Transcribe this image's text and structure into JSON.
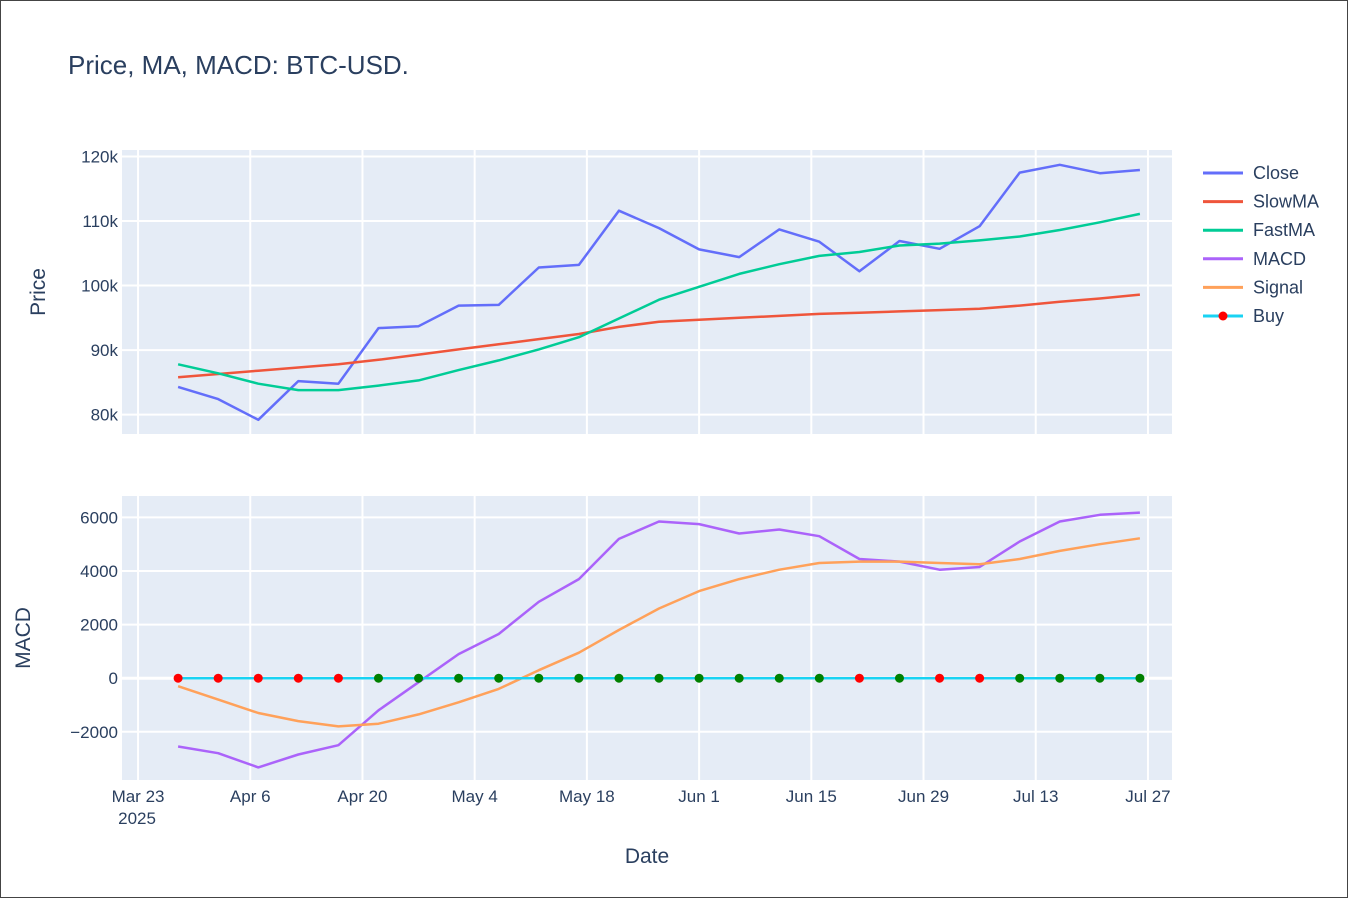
{
  "title": "Price, MA, MACD: BTC-USD.",
  "xaxis": {
    "title": "Date",
    "range": [
      "2025-03-21",
      "2025-07-30"
    ],
    "ticks": [
      {
        "date": "2025-03-23",
        "label": "Mar 23",
        "sub": "2025"
      },
      {
        "date": "2025-04-06",
        "label": "Apr 6"
      },
      {
        "date": "2025-04-20",
        "label": "Apr 20"
      },
      {
        "date": "2025-05-04",
        "label": "May 4"
      },
      {
        "date": "2025-05-18",
        "label": "May 18"
      },
      {
        "date": "2025-06-01",
        "label": "Jun 1"
      },
      {
        "date": "2025-06-15",
        "label": "Jun 15"
      },
      {
        "date": "2025-06-29",
        "label": "Jun 29"
      },
      {
        "date": "2025-07-13",
        "label": "Jul 13"
      },
      {
        "date": "2025-07-27",
        "label": "Jul 27"
      }
    ]
  },
  "panels": {
    "price": {
      "ytitle": "Price",
      "ylim": [
        77000,
        121000
      ],
      "ticks": [
        80000,
        90000,
        100000,
        110000,
        120000
      ],
      "tick_labels": [
        "80k",
        "90k",
        "100k",
        "110k",
        "120k"
      ]
    },
    "macd": {
      "ytitle": "MACD",
      "ylim": [
        -3800,
        6800
      ],
      "ticks": [
        -2000,
        0,
        2000,
        4000,
        6000
      ],
      "tick_labels": [
        "−2000",
        "0",
        "2000",
        "4000",
        "6000"
      ]
    }
  },
  "legend": [
    {
      "name": "Close",
      "color": "#636efa",
      "kind": "line"
    },
    {
      "name": "SlowMA",
      "color": "#ef553b",
      "kind": "line"
    },
    {
      "name": "FastMA",
      "color": "#00cc96",
      "kind": "line"
    },
    {
      "name": "MACD",
      "color": "#ab63fa",
      "kind": "line"
    },
    {
      "name": "Signal",
      "color": "#ffa15a",
      "kind": "line"
    },
    {
      "name": "Buy",
      "color": "#19d3f3",
      "marker": "#ff0000",
      "kind": "line-marker"
    }
  ],
  "chart_data": {
    "type": "line",
    "x": [
      "2025-03-28",
      "2025-04-02",
      "2025-04-07",
      "2025-04-12",
      "2025-04-17",
      "2025-04-22",
      "2025-04-27",
      "2025-05-02",
      "2025-05-07",
      "2025-05-12",
      "2025-05-17",
      "2025-05-22",
      "2025-05-27",
      "2025-06-01",
      "2025-06-06",
      "2025-06-11",
      "2025-06-16",
      "2025-06-21",
      "2025-06-26",
      "2025-07-01",
      "2025-07-06",
      "2025-07-11",
      "2025-07-16",
      "2025-07-21",
      "2025-07-26"
    ],
    "series": [
      {
        "name": "Close",
        "panel": "price",
        "color": "#636efa",
        "values": [
          84300,
          82400,
          79200,
          85200,
          84800,
          93400,
          93700,
          96900,
          97000,
          102800,
          103200,
          111600,
          108900,
          105600,
          104400,
          108700,
          106800,
          102200,
          106900,
          105700,
          109200,
          117500,
          118700,
          117400,
          117900
        ]
      },
      {
        "name": "SlowMA",
        "panel": "price",
        "color": "#ef553b",
        "values": [
          85800,
          86300,
          86800,
          87300,
          87800,
          88500,
          89300,
          90100,
          90900,
          91700,
          92500,
          93600,
          94400,
          94700,
          95000,
          95300,
          95600,
          95800,
          96000,
          96200,
          96400,
          96900,
          97500,
          98000,
          98600
        ]
      },
      {
        "name": "FastMA",
        "panel": "price",
        "color": "#00cc96",
        "values": [
          87800,
          86400,
          84800,
          83800,
          83800,
          84500,
          85300,
          86900,
          88400,
          90100,
          92000,
          94900,
          97800,
          99800,
          101800,
          103300,
          104600,
          105200,
          106200,
          106500,
          107000,
          107600,
          108600,
          109800,
          111100
        ]
      },
      {
        "name": "MACD",
        "panel": "macd",
        "color": "#ab63fa",
        "values": [
          -2550,
          -2800,
          -3330,
          -2850,
          -2500,
          -1200,
          -150,
          900,
          1650,
          2850,
          3700,
          5200,
          5850,
          5750,
          5400,
          5550,
          5300,
          4450,
          4350,
          4050,
          4150,
          5100,
          5850,
          6100,
          6180
        ]
      },
      {
        "name": "Signal",
        "panel": "macd",
        "color": "#ffa15a",
        "values": [
          -300,
          -800,
          -1300,
          -1600,
          -1800,
          -1700,
          -1350,
          -900,
          -400,
          300,
          950,
          1800,
          2600,
          3250,
          3700,
          4050,
          4300,
          4350,
          4350,
          4300,
          4250,
          4450,
          4750,
          5000,
          5220
        ]
      },
      {
        "name": "Buy",
        "panel": "macd",
        "color": "#19d3f3",
        "values": [
          0,
          0,
          0,
          0,
          0,
          0,
          0,
          0,
          0,
          0,
          0,
          0,
          0,
          0,
          0,
          0,
          0,
          0,
          0,
          0,
          0,
          0,
          0,
          0,
          0
        ],
        "marker_colors": [
          "#ff0000",
          "#ff0000",
          "#ff0000",
          "#ff0000",
          "#ff0000",
          "#008000",
          "#008000",
          "#008000",
          "#008000",
          "#008000",
          "#008000",
          "#008000",
          "#008000",
          "#008000",
          "#008000",
          "#008000",
          "#008000",
          "#ff0000",
          "#008000",
          "#ff0000",
          "#ff0000",
          "#008000",
          "#008000",
          "#008000",
          "#008000"
        ]
      }
    ]
  }
}
